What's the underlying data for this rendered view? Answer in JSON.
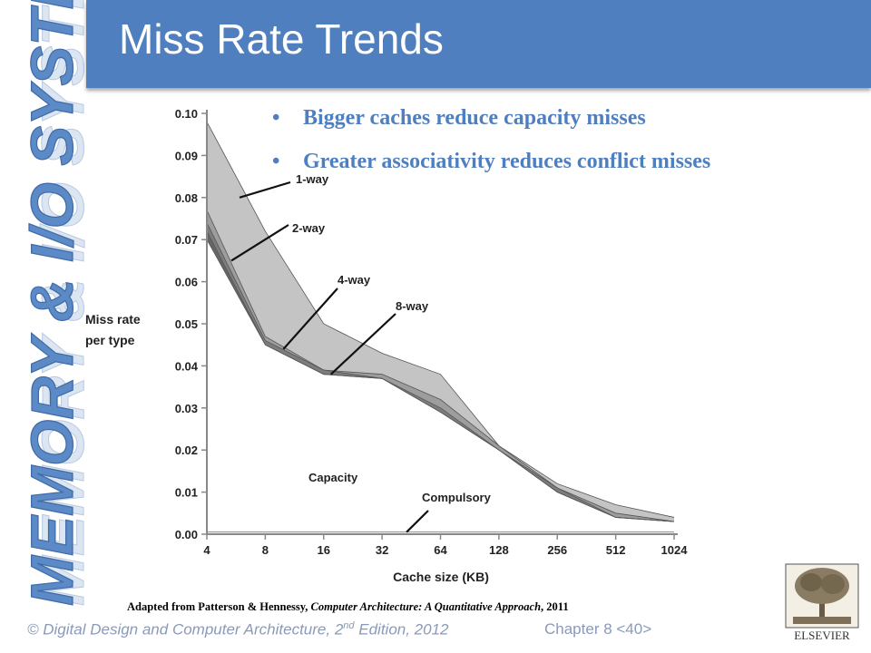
{
  "slide": {
    "title": "Miss Rate Trends",
    "side_label": "MEMORY & I/O SYSTEMS",
    "bullets": [
      "Bigger caches reduce  capacity misses",
      "Greater associativity reduces conflict misses"
    ],
    "bullet_glyph": "•",
    "credit_prefix": "Adapted from Patterson & Hennessy, ",
    "credit_book": "Computer Architecture: A Quantitative Approach",
    "credit_suffix": ", 2011",
    "footer_prefix": "© Digital Design and Computer Architecture, 2",
    "footer_sup": "nd",
    "footer_suffix": " Edition, 2012",
    "footer_chapter": "Chapter 8 <40>",
    "publisher": "ELSEVIER",
    "colors": {
      "title_bar": "#4f7fbe",
      "bullet_text": "#4f7fbe",
      "footer_text": "#8a9ab8",
      "one_way_band": "#c4c4c4",
      "two_way_band": "#9d9d9d",
      "four_way_band": "#7d7d7d",
      "eight_way_band": "#666666",
      "capacity_area": "#ffffff"
    }
  },
  "chart_data": {
    "type": "area",
    "xlabel": "Cache size (KB)",
    "ylabel": "Miss rate per type",
    "x": [
      4,
      8,
      16,
      32,
      64,
      128,
      256,
      512,
      1024
    ],
    "categories": [
      "4",
      "8",
      "16",
      "32",
      "64",
      "128",
      "256",
      "512",
      "1024"
    ],
    "ylim": [
      0,
      0.1
    ],
    "yticks": [
      "0.00",
      "0.01",
      "0.02",
      "0.03",
      "0.04",
      "0.05",
      "0.06",
      "0.07",
      "0.08",
      "0.09",
      "0.10"
    ],
    "series": [
      {
        "name": "1-way",
        "values": [
          0.098,
          0.072,
          0.05,
          0.043,
          0.038,
          0.021,
          0.012,
          0.007,
          0.004
        ]
      },
      {
        "name": "2-way",
        "values": [
          0.077,
          0.047,
          0.039,
          0.038,
          0.032,
          0.021,
          0.011,
          0.005,
          0.003
        ]
      },
      {
        "name": "4-way",
        "values": [
          0.074,
          0.046,
          0.039,
          0.037,
          0.03,
          0.02,
          0.011,
          0.004,
          0.003
        ]
      },
      {
        "name": "8-way",
        "values": [
          0.072,
          0.045,
          0.038,
          0.037,
          0.029,
          0.02,
          0.01,
          0.004,
          0.003
        ]
      },
      {
        "name": "Capacity",
        "values": [
          0.07,
          0.045,
          0.038,
          0.037,
          0.029,
          0.02,
          0.01,
          0.004,
          0.003
        ]
      },
      {
        "name": "Compulsory",
        "values": [
          0.0005,
          0.0005,
          0.0005,
          0.0005,
          0.0005,
          0.0005,
          0.0005,
          0.0005,
          0.0005
        ]
      }
    ],
    "annotations": [
      "1-way",
      "2-way",
      "4-way",
      "8-way",
      "Capacity",
      "Compulsory"
    ],
    "grid": false
  }
}
